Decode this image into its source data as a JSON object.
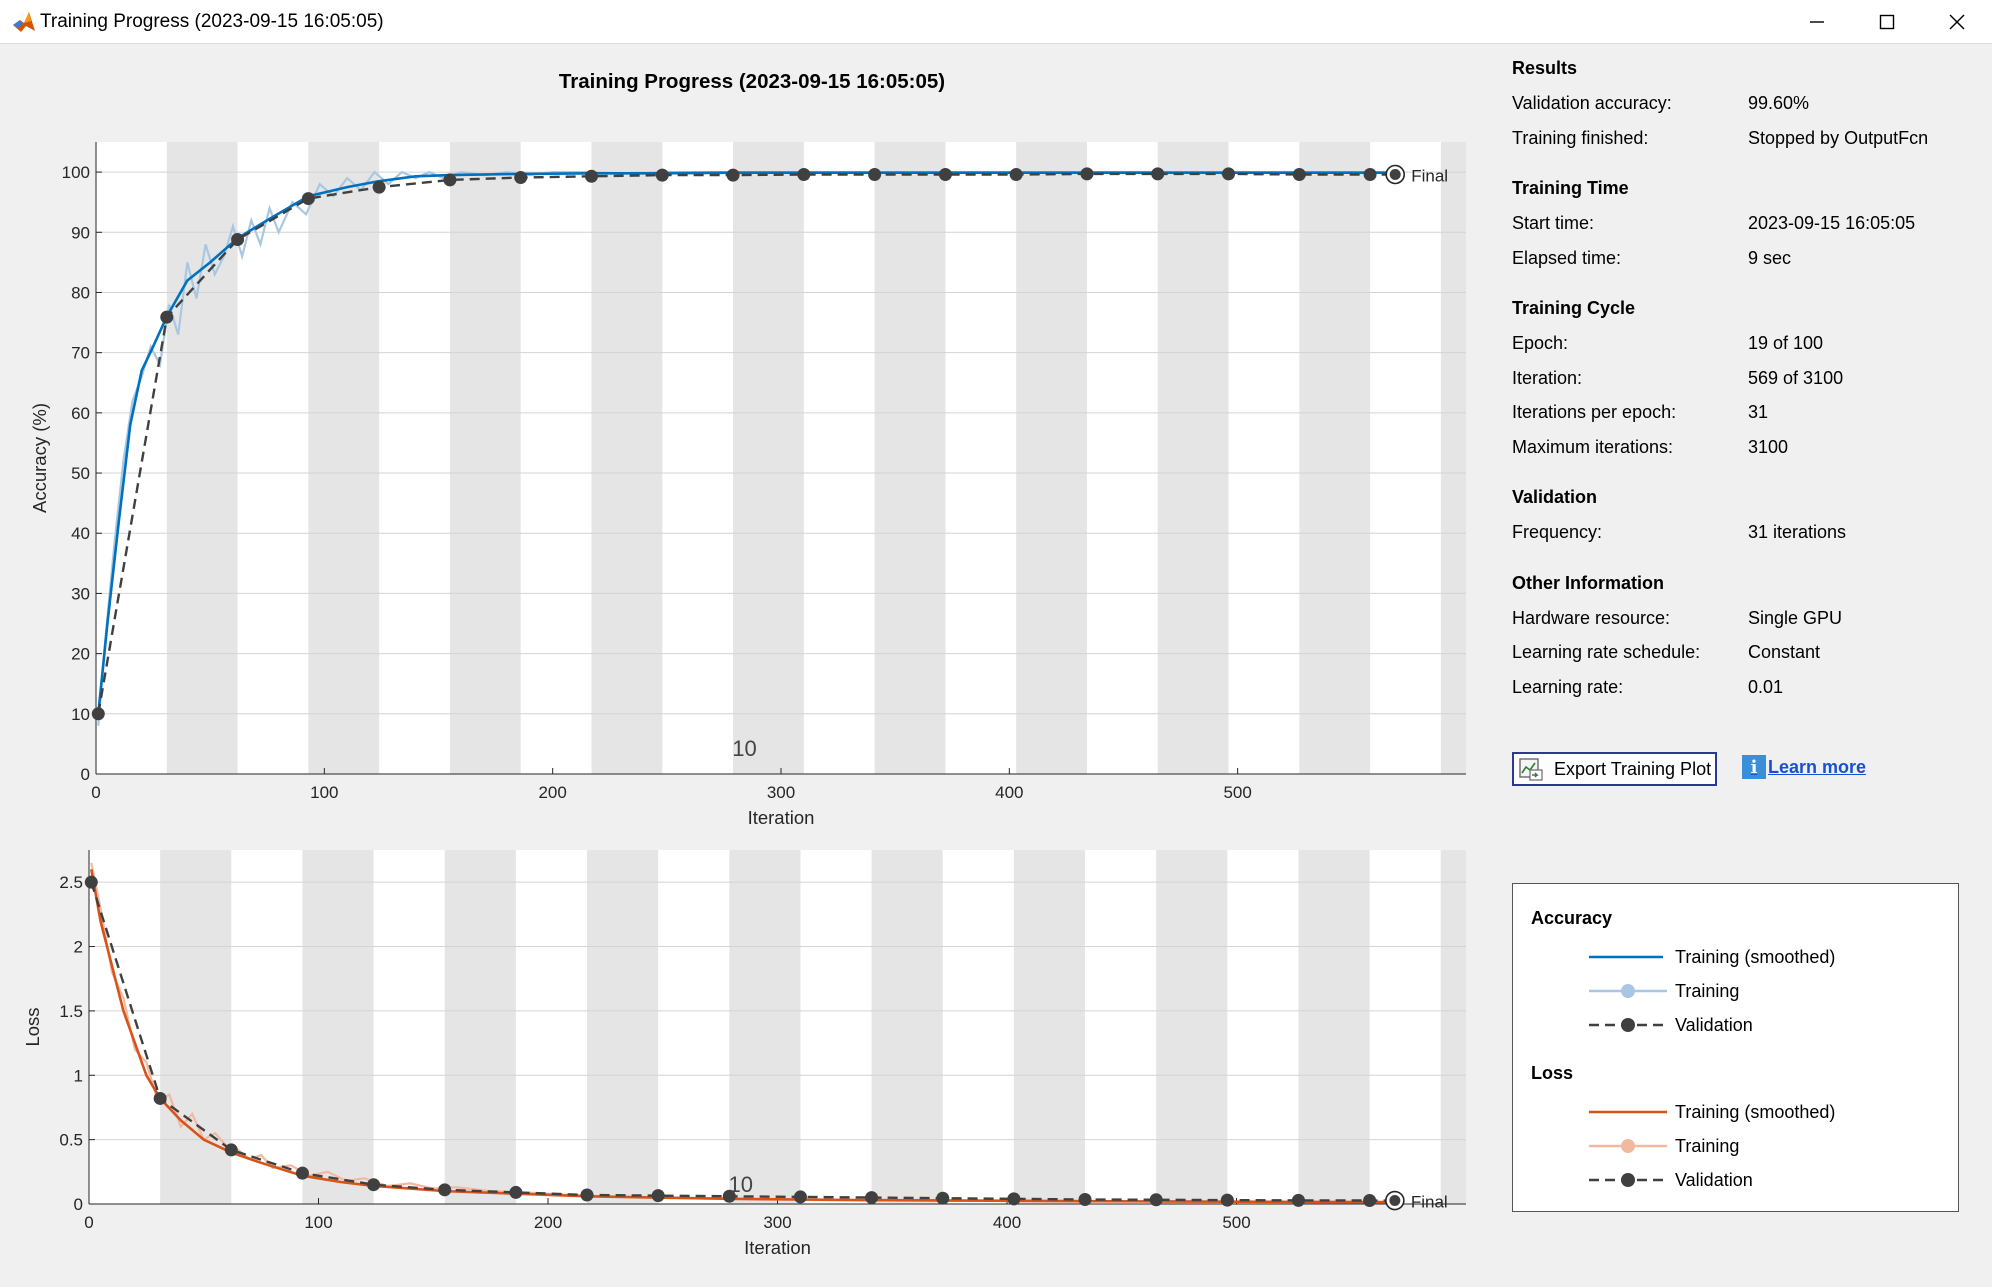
{
  "window": {
    "title": "Training Progress (2023-09-15 16:05:05)",
    "icon": "matlab-icon",
    "controls": [
      "minimize-icon",
      "maximize-icon",
      "close-icon"
    ]
  },
  "plot": {
    "title": "Training Progress (2023-09-15 16:05:05)",
    "final_label": "Final",
    "epoch_marker": "10"
  },
  "chart_data": [
    {
      "type": "line",
      "ylabel": "Accuracy (%)",
      "xlabel": "Iteration",
      "xlim": [
        0,
        600
      ],
      "ylim": [
        0,
        105
      ],
      "xticks": [
        0,
        100,
        200,
        300,
        400,
        500
      ],
      "yticks": [
        0,
        10,
        20,
        30,
        40,
        50,
        60,
        70,
        80,
        90,
        100
      ],
      "epoch_length": 31,
      "colors": {
        "smoothed": "#0072bd",
        "raw": "#a9c7e3",
        "validation": "#404040"
      },
      "series": [
        {
          "name": "Training (smoothed)",
          "x": [
            1,
            5,
            10,
            15,
            20,
            25,
            31,
            40,
            50,
            62,
            75,
            93,
            110,
            124,
            140,
            155,
            186,
            217,
            248,
            279,
            310,
            341,
            372,
            403,
            434,
            465,
            496,
            527,
            558,
            569
          ],
          "y": [
            10,
            25,
            42,
            58,
            67,
            71,
            76,
            82,
            85,
            89,
            92,
            96,
            97.5,
            98.5,
            99.3,
            99.5,
            99.7,
            99.8,
            99.8,
            99.9,
            99.9,
            99.9,
            99.9,
            99.9,
            99.9,
            99.9,
            99.9,
            99.9,
            99.9,
            99.9
          ]
        },
        {
          "name": "Training",
          "x": [
            1,
            4,
            8,
            12,
            16,
            20,
            24,
            28,
            32,
            36,
            40,
            44,
            48,
            52,
            56,
            60,
            64,
            68,
            72,
            76,
            80,
            86,
            92,
            98,
            104,
            110,
            116,
            122,
            128,
            134,
            140,
            146,
            152,
            160,
            170,
            180,
            190,
            200,
            215,
            230,
            250,
            280,
            320,
            360,
            400,
            450,
            500,
            540,
            569
          ],
          "y": [
            8,
            22,
            38,
            52,
            62,
            66,
            71,
            68,
            78,
            73,
            85,
            79,
            88,
            83,
            86,
            91,
            86,
            92,
            88,
            94,
            90,
            95,
            93,
            98,
            96,
            99,
            97,
            100,
            98,
            100,
            99,
            100,
            99,
            100,
            99.5,
            100,
            99.5,
            100,
            100,
            99.8,
            100,
            100,
            100,
            100,
            100,
            100,
            100,
            100,
            100
          ]
        },
        {
          "name": "Validation",
          "x": [
            1,
            31,
            62,
            93,
            124,
            155,
            186,
            217,
            248,
            279,
            310,
            341,
            372,
            403,
            434,
            465,
            496,
            527,
            558,
            569
          ],
          "y": [
            10,
            75.9,
            88.8,
            95.6,
            97.5,
            98.7,
            99.1,
            99.3,
            99.5,
            99.5,
            99.6,
            99.6,
            99.6,
            99.6,
            99.7,
            99.7,
            99.7,
            99.6,
            99.6,
            99.6
          ]
        }
      ]
    },
    {
      "type": "line",
      "ylabel": "Loss",
      "xlabel": "Iteration",
      "xlim": [
        0,
        600
      ],
      "ylim": [
        0,
        2.75
      ],
      "xticks": [
        0,
        100,
        200,
        300,
        400,
        500
      ],
      "yticks": [
        0,
        0.5,
        1,
        1.5,
        2,
        2.5
      ],
      "epoch_length": 31,
      "colors": {
        "smoothed": "#d95319",
        "raw": "#f2b9a1",
        "validation": "#404040"
      },
      "series": [
        {
          "name": "Training (smoothed)",
          "x": [
            1,
            5,
            10,
            15,
            20,
            25,
            31,
            40,
            50,
            62,
            75,
            93,
            110,
            124,
            140,
            155,
            186,
            217,
            248,
            279,
            310,
            341,
            372,
            403,
            434,
            465,
            496,
            527,
            558,
            569
          ],
          "y": [
            2.6,
            2.2,
            1.85,
            1.5,
            1.25,
            1.0,
            0.82,
            0.65,
            0.5,
            0.4,
            0.32,
            0.22,
            0.17,
            0.14,
            0.12,
            0.1,
            0.08,
            0.06,
            0.05,
            0.04,
            0.035,
            0.03,
            0.028,
            0.025,
            0.022,
            0.02,
            0.018,
            0.016,
            0.015,
            0.015
          ]
        },
        {
          "name": "Training",
          "x": [
            1,
            5,
            10,
            15,
            20,
            25,
            30,
            35,
            40,
            45,
            50,
            55,
            60,
            65,
            70,
            75,
            80,
            88,
            96,
            104,
            112,
            120,
            130,
            140,
            150,
            160,
            175,
            190,
            210,
            240,
            280,
            320,
            380,
            440,
            500,
            569
          ],
          "y": [
            2.65,
            2.3,
            1.8,
            1.6,
            1.2,
            1.1,
            0.8,
            0.85,
            0.6,
            0.7,
            0.5,
            0.55,
            0.45,
            0.42,
            0.35,
            0.38,
            0.28,
            0.3,
            0.22,
            0.25,
            0.18,
            0.2,
            0.14,
            0.16,
            0.12,
            0.13,
            0.1,
            0.09,
            0.07,
            0.05,
            0.04,
            0.03,
            0.025,
            0.02,
            0.018,
            0.015
          ]
        },
        {
          "name": "Validation",
          "x": [
            1,
            31,
            62,
            93,
            124,
            155,
            186,
            217,
            248,
            279,
            310,
            341,
            372,
            403,
            434,
            465,
            496,
            527,
            558,
            569
          ],
          "y": [
            2.5,
            0.82,
            0.42,
            0.24,
            0.15,
            0.11,
            0.09,
            0.07,
            0.065,
            0.06,
            0.055,
            0.05,
            0.045,
            0.04,
            0.035,
            0.033,
            0.03,
            0.028,
            0.027,
            0.027
          ]
        }
      ]
    }
  ],
  "results": {
    "sections": [
      {
        "title": "Results",
        "rows": [
          {
            "label": "Validation accuracy:",
            "value": "99.60%"
          },
          {
            "label": "Training finished:",
            "value": "Stopped by OutputFcn"
          }
        ]
      },
      {
        "title": "Training Time",
        "rows": [
          {
            "label": "Start time:",
            "value": "2023-09-15 16:05:05"
          },
          {
            "label": "Elapsed time:",
            "value": "9 sec"
          }
        ]
      },
      {
        "title": "Training Cycle",
        "rows": [
          {
            "label": "Epoch:",
            "value": "19 of 100"
          },
          {
            "label": "Iteration:",
            "value": "569 of 3100"
          },
          {
            "label": "Iterations per epoch:",
            "value": "31"
          },
          {
            "label": "Maximum iterations:",
            "value": "3100"
          }
        ]
      },
      {
        "title": "Validation",
        "rows": [
          {
            "label": "Frequency:",
            "value": "31 iterations"
          }
        ]
      },
      {
        "title": "Other Information",
        "rows": [
          {
            "label": "Hardware resource:",
            "value": "Single GPU"
          },
          {
            "label": "Learning rate schedule:",
            "value": "Constant"
          },
          {
            "label": "Learning rate:",
            "value": "0.01"
          }
        ]
      }
    ]
  },
  "buttons": {
    "export_label": "Export Training Plot",
    "learn_more_label": "Learn more"
  },
  "legend": {
    "accuracy_title": "Accuracy",
    "loss_title": "Loss",
    "accuracy_items": [
      "Training (smoothed)",
      "Training",
      "Validation"
    ],
    "loss_items": [
      "Training (smoothed)",
      "Training",
      "Validation"
    ]
  }
}
